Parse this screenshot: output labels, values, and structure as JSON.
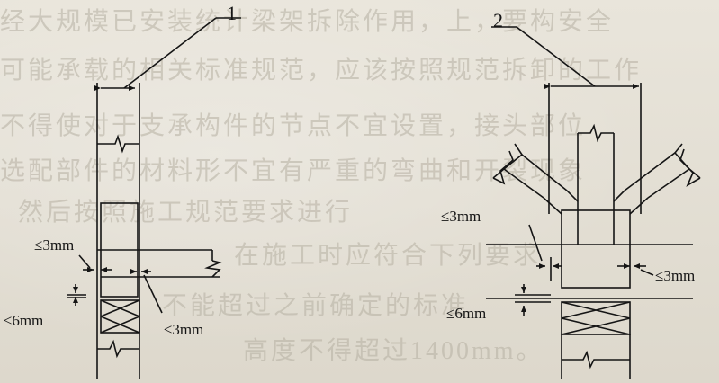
{
  "background_text": [
    "经大规模已安装统计梁架拆除作用，上，要构安全",
    "可能承载的相关标准规范，应该按照规范拆卸的工作",
    "不得使对于支承构件的节点不宜设置，接头部位",
    "选配部件的材料形不宜有严重的弯曲和开裂现象",
    "然后按照施工规范要求进行",
    "在施工时应符合下列要求",
    "不能超过之前确定的标准",
    "高度不得超过1400mm。"
  ],
  "figure": {
    "callout_1": "1",
    "callout_2": "2",
    "left_dim_top": "≤3mm",
    "left_dim_bottom": "≤3mm",
    "left_dim_vertical": "≤6mm",
    "right_dim_left": "≤3mm",
    "right_dim_right": "≤3mm",
    "right_dim_vertical": "≤6mm"
  }
}
